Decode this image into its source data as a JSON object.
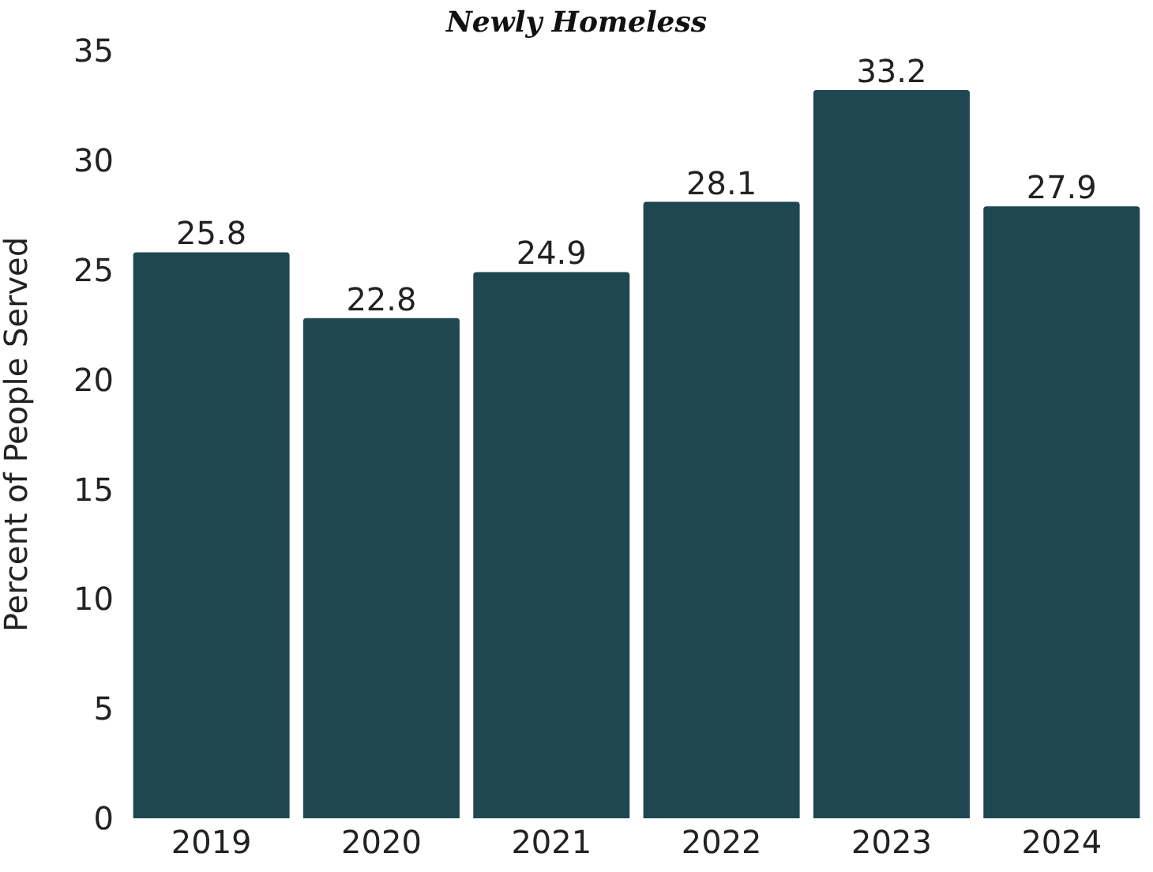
{
  "chart_data": {
    "type": "bar",
    "title": "Newly Homeless",
    "ylabel": "Percent of People Served",
    "categories": [
      "2019",
      "2020",
      "2021",
      "2022",
      "2023",
      "2024"
    ],
    "values": [
      25.8,
      22.8,
      24.9,
      28.1,
      33.2,
      27.9
    ],
    "color": "#1f4751",
    "ylim": [
      0,
      35
    ],
    "yticks": [
      0,
      5,
      10,
      15,
      20,
      25,
      30,
      35
    ],
    "data_labels": true,
    "grid": false,
    "legend": false
  }
}
